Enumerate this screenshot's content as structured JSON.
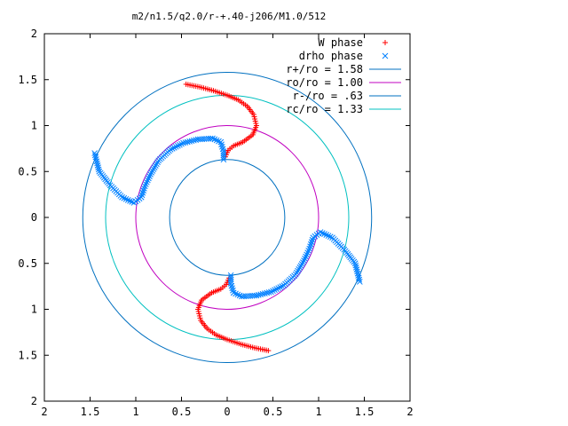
{
  "chart_data": {
    "type": "scatter",
    "title": "m2/n1.5/q2.0/r-+.40-j206/M1.0/512",
    "xlim": [
      -2,
      2
    ],
    "ylim": [
      -2,
      2
    ],
    "x_tick_values": [
      -2,
      -1.5,
      -1,
      -0.5,
      0,
      0.5,
      1,
      1.5,
      2
    ],
    "x_tick_labels": [
      "2",
      "1.5",
      "1",
      "0.5",
      "0",
      "0.5",
      "1",
      "1.5",
      "2"
    ],
    "y_tick_values": [
      2,
      1.5,
      1,
      0.5,
      0,
      -0.5,
      -1,
      -1.5,
      -2
    ],
    "y_tick_labels": [
      "2",
      "1.5",
      "1",
      "0.5",
      "0",
      "0.5",
      "1",
      "1.5",
      "2"
    ],
    "grid": false,
    "legend_position": "top-right",
    "series": [
      {
        "name": "W phase",
        "marker": "plus",
        "color": "#ff0000",
        "points": [
          [
            -0.45,
            1.45
          ],
          [
            -0.3,
            1.42
          ],
          [
            -0.15,
            1.38
          ],
          [
            0.0,
            1.33
          ],
          [
            0.12,
            1.28
          ],
          [
            0.22,
            1.21
          ],
          [
            0.29,
            1.12
          ],
          [
            0.32,
            1.0
          ],
          [
            0.28,
            0.9
          ],
          [
            0.17,
            0.82
          ],
          [
            0.07,
            0.78
          ],
          [
            0.01,
            0.73
          ],
          [
            -0.02,
            0.66
          ],
          [
            0.45,
            -1.45
          ],
          [
            0.3,
            -1.42
          ],
          [
            0.15,
            -1.38
          ],
          [
            0.0,
            -1.33
          ],
          [
            -0.12,
            -1.28
          ],
          [
            -0.22,
            -1.21
          ],
          [
            -0.29,
            -1.12
          ],
          [
            -0.32,
            -1.0
          ],
          [
            -0.28,
            -0.9
          ],
          [
            -0.17,
            -0.82
          ],
          [
            -0.07,
            -0.78
          ],
          [
            -0.01,
            -0.73
          ],
          [
            0.02,
            -0.66
          ]
        ]
      },
      {
        "name": "drho phase",
        "marker": "cross",
        "color": "#0080ff",
        "points": [
          [
            -1.45,
            0.7
          ],
          [
            -1.4,
            0.5
          ],
          [
            -1.28,
            0.35
          ],
          [
            -1.15,
            0.22
          ],
          [
            -1.02,
            0.16
          ],
          [
            -0.94,
            0.22
          ],
          [
            -0.9,
            0.34
          ],
          [
            -0.84,
            0.47
          ],
          [
            -0.75,
            0.62
          ],
          [
            -0.62,
            0.74
          ],
          [
            -0.48,
            0.81
          ],
          [
            -0.32,
            0.85
          ],
          [
            -0.16,
            0.86
          ],
          [
            -0.07,
            0.82
          ],
          [
            -0.04,
            0.72
          ],
          [
            -0.04,
            0.63
          ],
          [
            1.45,
            -0.7
          ],
          [
            1.4,
            -0.5
          ],
          [
            1.28,
            -0.35
          ],
          [
            1.15,
            -0.22
          ],
          [
            1.02,
            -0.16
          ],
          [
            0.94,
            -0.22
          ],
          [
            0.9,
            -0.34
          ],
          [
            0.84,
            -0.47
          ],
          [
            0.75,
            -0.62
          ],
          [
            0.62,
            -0.74
          ],
          [
            0.48,
            -0.81
          ],
          [
            0.32,
            -0.85
          ],
          [
            0.16,
            -0.86
          ],
          [
            0.07,
            -0.82
          ],
          [
            0.04,
            -0.72
          ],
          [
            0.04,
            -0.63
          ]
        ]
      },
      {
        "name": "r+/ro = 1.58",
        "type": "circle",
        "radius": 1.58,
        "color": "#0070c0"
      },
      {
        "name": "ro/ro = 1.00",
        "type": "circle",
        "radius": 1.0,
        "color": "#c000c0"
      },
      {
        "name": "r-/ro = .63",
        "type": "circle",
        "radius": 0.63,
        "color": "#0070c0"
      },
      {
        "name": "rc/ro = 1.33",
        "type": "circle",
        "radius": 1.33,
        "color": "#00c0c0"
      }
    ]
  }
}
